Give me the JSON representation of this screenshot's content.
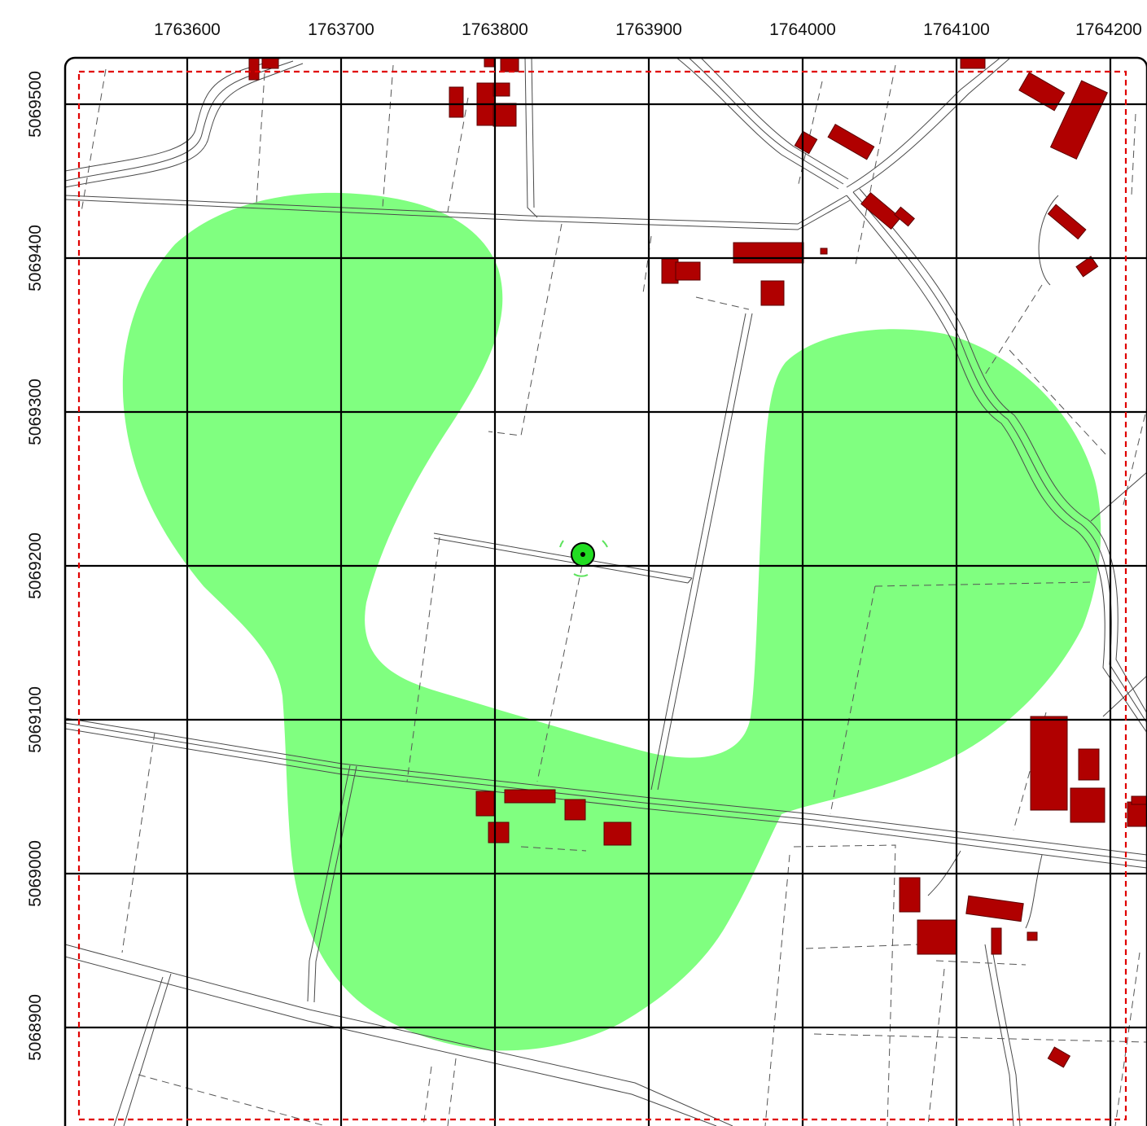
{
  "map": {
    "x_ticks": [
      "1763600",
      "1763700",
      "1763800",
      "1763900",
      "1764000",
      "1764100",
      "1764200"
    ],
    "y_ticks": [
      "5069500",
      "5069400",
      "5069300",
      "5069200",
      "5069100",
      "5069000",
      "5068900"
    ],
    "colors": {
      "coverage_area": "#80ff80",
      "building": "#b00000",
      "boundary": "#e00000",
      "site_marker": "#22dd22",
      "grid": "#000000"
    },
    "site_marker_icon": "antenna-site-icon"
  }
}
